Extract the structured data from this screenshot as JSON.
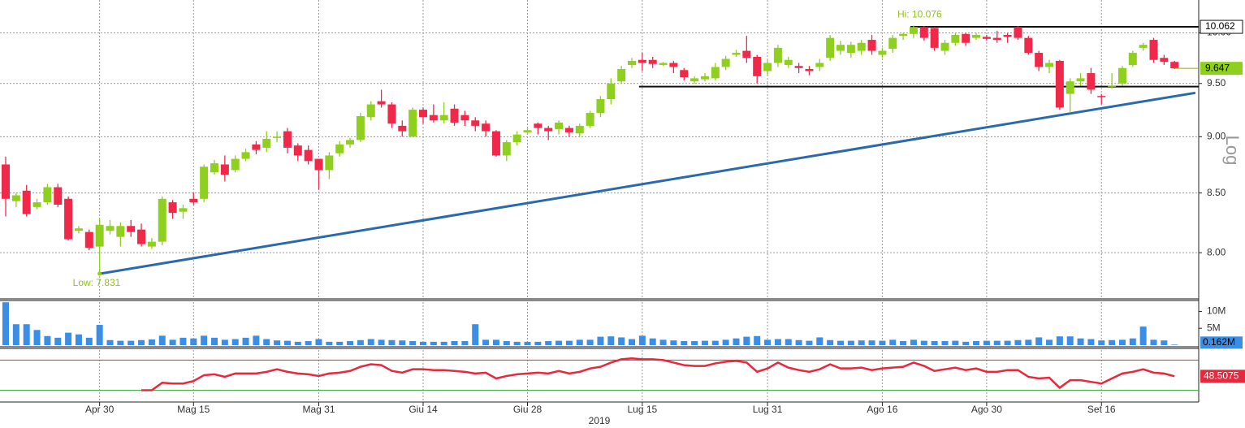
{
  "chart_data": [
    {
      "type": "candlestick",
      "log": true,
      "grid": true,
      "up_color": "#8fd01e",
      "down_color": "#f0284a",
      "categories": [
        null,
        null,
        null,
        null,
        null,
        null,
        null,
        null,
        null,
        "Apr 30",
        null,
        null,
        null,
        null,
        null,
        null,
        null,
        null,
        "Mag 15",
        null,
        null,
        null,
        null,
        null,
        null,
        null,
        null,
        null,
        null,
        null,
        "Mag 31",
        null,
        null,
        null,
        null,
        null,
        null,
        null,
        null,
        null,
        "Giu 14",
        null,
        null,
        null,
        null,
        null,
        null,
        null,
        null,
        null,
        "Giu 28",
        null,
        null,
        null,
        null,
        null,
        null,
        null,
        null,
        null,
        null,
        "Lug 15",
        null,
        null,
        null,
        null,
        null,
        null,
        null,
        null,
        null,
        null,
        null,
        "Lug 31",
        null,
        null,
        null,
        null,
        null,
        null,
        null,
        null,
        null,
        null,
        "Ago 16",
        null,
        null,
        null,
        null,
        null,
        null,
        null,
        null,
        null,
        "Ago 30",
        null,
        null,
        null,
        null,
        null,
        null,
        null,
        null,
        null,
        null,
        "Set 16",
        null,
        null,
        null,
        null,
        null,
        null,
        null
      ],
      "x_label": "2019",
      "open": [
        8.75,
        8.43,
        8.52,
        8.38,
        8.42,
        8.55,
        8.45,
        8.18,
        8.17,
        8.05,
        8.18,
        8.13,
        8.22,
        8.19,
        8.05,
        8.09,
        8.42,
        8.34,
        8.45,
        8.45,
        8.68,
        8.75,
        8.7,
        8.8,
        8.93,
        8.9,
        8.99,
        9.05,
        8.92,
        8.88,
        8.8,
        8.7,
        8.85,
        8.93,
        8.97,
        9.18,
        9.33,
        9.3,
        9.1,
        9.0,
        9.25,
        9.2,
        9.15,
        9.26,
        9.2,
        9.15,
        9.12,
        9.05,
        8.83,
        8.95,
        9.04,
        9.12,
        9.08,
        9.07,
        9.08,
        9.03,
        9.1,
        9.22,
        9.35,
        9.52,
        9.68,
        9.73,
        9.73,
        9.68,
        9.7,
        9.63,
        9.52,
        9.54,
        9.55,
        9.66,
        9.78,
        9.82,
        9.76,
        9.62,
        9.7,
        9.68,
        9.67,
        9.64,
        9.66,
        9.75,
        9.82,
        9.8,
        9.82,
        9.93,
        9.78,
        9.84,
        9.97,
        9.99,
        10.06,
        10.05,
        9.82,
        9.9,
        9.99,
        9.95,
        9.96,
        9.95,
        9.98,
        10.06,
        9.95,
        9.8,
        9.66,
        9.72,
        9.4,
        9.52,
        9.6,
        9.38,
        9.47,
        9.5,
        9.68,
        9.85,
        9.93,
        9.75,
        9.71
      ],
      "high": [
        8.82,
        8.5,
        8.57,
        8.45,
        8.58,
        8.58,
        8.47,
        8.22,
        8.19,
        8.28,
        8.27,
        8.25,
        8.27,
        8.24,
        8.12,
        8.47,
        8.44,
        8.4,
        8.5,
        8.75,
        8.79,
        8.83,
        8.83,
        8.89,
        8.96,
        9.05,
        9.05,
        9.08,
        8.94,
        8.92,
        8.8,
        8.86,
        8.96,
        8.99,
        9.22,
        9.33,
        9.44,
        9.32,
        9.15,
        9.27,
        9.27,
        9.3,
        9.32,
        9.3,
        9.24,
        9.18,
        9.15,
        9.06,
        8.97,
        9.05,
        9.08,
        9.13,
        9.1,
        9.15,
        9.1,
        9.12,
        9.24,
        9.38,
        9.55,
        9.67,
        9.75,
        9.8,
        9.76,
        9.71,
        9.72,
        9.65,
        9.57,
        9.6,
        9.7,
        9.77,
        9.83,
        9.97,
        9.78,
        9.73,
        9.88,
        9.76,
        9.7,
        9.67,
        9.74,
        9.98,
        9.92,
        9.91,
        9.93,
        9.98,
        9.85,
        9.98,
        10.0,
        10.076,
        10.07,
        10.06,
        9.93,
        10.0,
        10.0,
        10.0,
        9.98,
        10.02,
        10.0,
        10.07,
        9.97,
        9.82,
        9.73,
        9.73,
        9.55,
        9.6,
        9.65,
        9.4,
        9.6,
        9.67,
        9.82,
        9.9,
        9.95,
        9.78,
        9.72
      ],
      "low": [
        8.3,
        8.38,
        8.3,
        8.36,
        8.4,
        8.38,
        8.1,
        8.16,
        8.02,
        7.831,
        8.15,
        8.05,
        8.13,
        8.05,
        8.03,
        8.06,
        8.28,
        8.28,
        8.4,
        8.42,
        8.66,
        8.6,
        8.68,
        8.78,
        8.84,
        8.86,
        8.95,
        8.85,
        8.78,
        8.75,
        8.53,
        8.62,
        8.82,
        8.9,
        8.95,
        9.15,
        9.27,
        9.08,
        9.0,
        9.0,
        9.12,
        9.13,
        9.12,
        9.1,
        9.1,
        9.05,
        9.0,
        8.82,
        8.78,
        8.92,
        9.02,
        9.02,
        8.97,
        9.02,
        9.0,
        9.0,
        9.08,
        9.18,
        9.3,
        9.5,
        9.65,
        9.62,
        9.65,
        9.67,
        9.6,
        9.53,
        9.5,
        9.52,
        9.53,
        9.63,
        9.76,
        9.7,
        9.5,
        9.58,
        9.66,
        9.65,
        9.6,
        9.58,
        9.62,
        9.72,
        9.78,
        9.75,
        9.78,
        9.78,
        9.75,
        9.8,
        9.93,
        9.95,
        9.92,
        9.82,
        9.78,
        9.87,
        9.87,
        9.93,
        9.92,
        9.9,
        9.9,
        9.93,
        9.78,
        9.62,
        9.6,
        9.25,
        9.22,
        9.48,
        9.4,
        9.3,
        9.45,
        9.48,
        9.66,
        9.82,
        9.7,
        9.68,
        9.64
      ],
      "close": [
        8.45,
        8.48,
        8.32,
        8.42,
        8.55,
        8.4,
        8.11,
        8.2,
        8.04,
        8.23,
        8.22,
        8.22,
        8.17,
        8.07,
        8.09,
        8.45,
        8.33,
        8.37,
        8.42,
        8.73,
        8.76,
        8.66,
        8.8,
        8.86,
        8.88,
        8.98,
        9.0,
        8.9,
        8.83,
        8.78,
        8.7,
        8.83,
        8.93,
        8.97,
        9.19,
        9.3,
        9.3,
        9.12,
        9.05,
        9.25,
        9.18,
        9.15,
        9.2,
        9.13,
        9.15,
        9.1,
        9.05,
        8.83,
        8.95,
        9.02,
        9.06,
        9.08,
        9.05,
        9.13,
        9.04,
        9.1,
        9.22,
        9.35,
        9.5,
        9.64,
        9.72,
        9.7,
        9.69,
        9.7,
        9.66,
        9.56,
        9.55,
        9.57,
        9.66,
        9.74,
        9.8,
        9.75,
        9.57,
        9.7,
        9.85,
        9.73,
        9.65,
        9.62,
        9.7,
        9.95,
        9.88,
        9.88,
        9.9,
        9.82,
        9.82,
        9.95,
        9.99,
        10.06,
        9.95,
        9.85,
        9.9,
        9.98,
        9.9,
        9.98,
        9.94,
        9.93,
        9.96,
        9.95,
        9.8,
        9.66,
        9.7,
        9.27,
        9.52,
        9.55,
        9.44,
        9.37,
        9.48,
        9.65,
        9.8,
        9.88,
        9.73,
        9.71,
        9.647
      ],
      "ylim": [
        7.64,
        10.34
      ],
      "yticks": [
        {
          "value": 8,
          "label": "8.00"
        },
        {
          "value": 8.5,
          "label": "8.50"
        },
        {
          "value": 9,
          "label": "9.00"
        },
        {
          "value": 9.5,
          "label": "9.50"
        },
        {
          "value": 10,
          "label": "10.00"
        }
      ],
      "scale_label": "Log",
      "hi_label": "Hi: 10.076",
      "low_label": "Low: 7.831",
      "hlines": [
        {
          "value": 10.062,
          "start": 87,
          "tag": true
        },
        {
          "value": 9.47,
          "start": 61,
          "tag": false
        }
      ],
      "trendline": {
        "x": [
          9,
          114
        ],
        "y": [
          7.831,
          9.41
        ],
        "color": "#2b69ad"
      }
    },
    {
      "type": "bar",
      "color": "#3a8ee6",
      "grid": true,
      "values": [
        12.7,
        6.2,
        6.2,
        4.5,
        2.7,
        2.2,
        3.7,
        3.2,
        2.2,
        6.0,
        1.5,
        1.3,
        1.3,
        1.5,
        1.7,
        2.8,
        1.6,
        2.2,
        2.0,
        2.8,
        2.2,
        1.6,
        1.8,
        2.2,
        2.8,
        1.8,
        1.4,
        1.3,
        1.0,
        1.2,
        1.8,
        1.0,
        1.0,
        1.2,
        1.5,
        1.8,
        1.6,
        1.5,
        1.4,
        1.2,
        1.0,
        1.0,
        1.0,
        1.2,
        1.2,
        6.2,
        1.6,
        1.6,
        1.2,
        1.0,
        1.0,
        1.0,
        1.2,
        1.3,
        1.3,
        1.6,
        1.6,
        2.5,
        2.6,
        2.3,
        1.8,
        2.8,
        2.0,
        1.6,
        1.4,
        1.2,
        1.2,
        1.3,
        1.3,
        1.6,
        2.0,
        2.5,
        2.7,
        1.6,
        1.8,
        1.8,
        1.5,
        1.3,
        2.3,
        1.5,
        1.3,
        1.3,
        1.4,
        1.4,
        1.3,
        1.6,
        1.2,
        1.6,
        1.3,
        1.2,
        1.2,
        1.3,
        1.0,
        1.2,
        1.3,
        1.3,
        1.3,
        1.5,
        1.6,
        2.3,
        1.6,
        2.6,
        2.6,
        2.0,
        1.8,
        1.4,
        1.5,
        1.6,
        2.0,
        5.5,
        1.6,
        1.4,
        0.162
      ],
      "ylim": [
        0,
        12.75
      ],
      "yticks": [
        {
          "value": 10,
          "label": "10M"
        },
        {
          "value": 5,
          "label": "5M"
        }
      ],
      "current": {
        "value": 0.162,
        "label": "0.162M"
      }
    },
    {
      "type": "line",
      "color": "#e8283c",
      "grid": true,
      "values": [
        null,
        null,
        null,
        null,
        null,
        null,
        null,
        null,
        null,
        null,
        null,
        null,
        null,
        30,
        30,
        40,
        38.9,
        38.9,
        42.2,
        50,
        51.1,
        47.8,
        52.2,
        52.2,
        52.2,
        54.4,
        57.8,
        54.4,
        52.2,
        51.1,
        48.9,
        52.2,
        53.3,
        55.6,
        61.1,
        64.4,
        63.3,
        55.6,
        53.3,
        57.8,
        57.8,
        56.7,
        56.7,
        55.6,
        54.4,
        52.2,
        53.3,
        45.6,
        48.9,
        51.1,
        52.2,
        53.3,
        52.2,
        55.6,
        52.2,
        54.4,
        58.9,
        61.1,
        66.7,
        71.1,
        72.2,
        71.1,
        71.1,
        70,
        66.7,
        63.3,
        62.2,
        62.2,
        65.6,
        67.8,
        68.9,
        66.7,
        54.4,
        58.9,
        66.7,
        60,
        56.7,
        54.4,
        57.8,
        64.4,
        58.9,
        58.9,
        60,
        56.7,
        58.9,
        60,
        61.1,
        66.7,
        62.2,
        55.6,
        57.8,
        60,
        56.7,
        58.9,
        54.4,
        54.4,
        56.7,
        56.7,
        47.8,
        45.6,
        46.7,
        33.3,
        43.3,
        43.3,
        41.1,
        38.9,
        45.6,
        52.2,
        54.4,
        57.8,
        53.3,
        52.2,
        48.5075
      ],
      "ylim": [
        14.4,
        83.3
      ],
      "levels": [
        {
          "value": 70,
          "color": "#e03030"
        },
        {
          "value": 30,
          "color": "#40b040"
        }
      ]
    }
  ]
}
